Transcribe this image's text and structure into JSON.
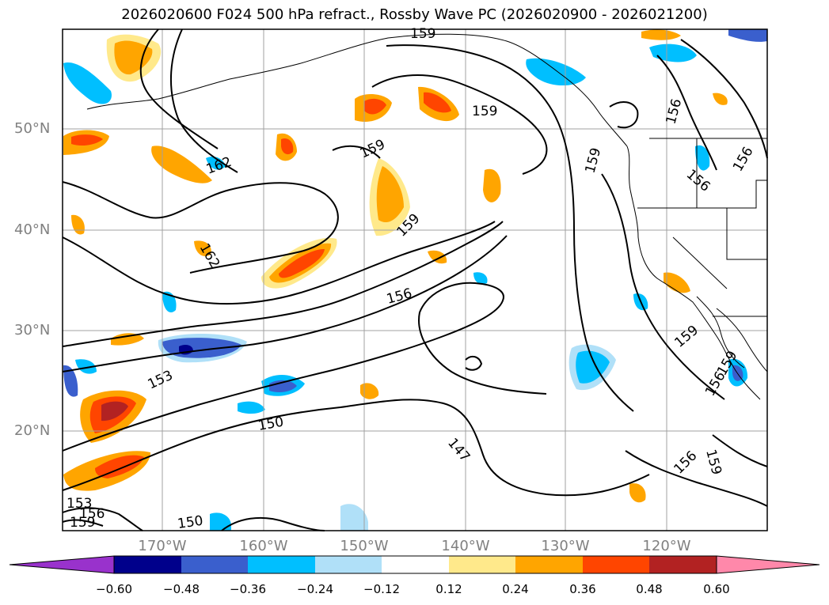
{
  "title": "2026020600 F024 500 hPa refract., Rossby Wave PC (2026020900 - 2026021200)",
  "map": {
    "latitude_labels": [
      "50°N",
      "40°N",
      "30°N",
      "20°N"
    ],
    "longitude_labels": [
      "170°W",
      "160°W",
      "150°W",
      "140°W",
      "130°W",
      "120°W"
    ],
    "contour_labels": [
      "159",
      "159",
      "156",
      "156",
      "162",
      "159",
      "159",
      "156",
      "162",
      "159",
      "156",
      "159",
      "159",
      "156",
      "153",
      "150",
      "147",
      "156",
      "159",
      "153",
      "156",
      "159",
      "150"
    ],
    "colors": {
      "positive_light": "#ffe98b",
      "positive_mid": "#ffa500",
      "positive_strong": "#ff4500",
      "positive_very_strong": "#b22222",
      "positive_extreme": "#ff88aa",
      "negative_light": "#b0e0f8",
      "negative_mid": "#00bfff",
      "negative_strong": "#3a5fcd",
      "negative_very_strong": "#00008b",
      "negative_extreme": "#9932cc"
    }
  },
  "colorbar": {
    "ticks": [
      "−0.60",
      "−0.48",
      "−0.36",
      "−0.24",
      "−0.12",
      "0.12",
      "0.24",
      "0.36",
      "0.48",
      "0.60"
    ],
    "colors": [
      "#9932cc",
      "#00008b",
      "#3a5fcd",
      "#00bfff",
      "#b0e0f8",
      "#ffffff",
      "#ffe98b",
      "#ffa500",
      "#ff4500",
      "#b22222",
      "#ff88aa"
    ]
  }
}
